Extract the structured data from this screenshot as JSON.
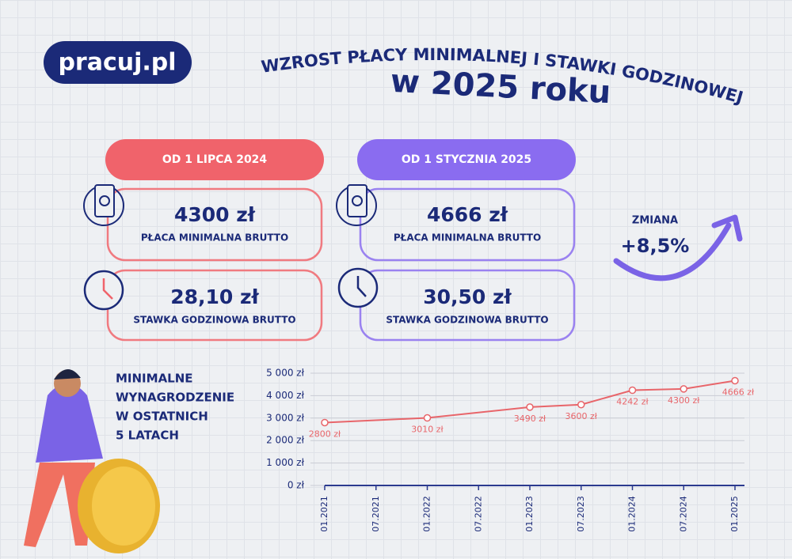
{
  "header": {
    "logo": "pracuj.pl",
    "title": "WZROST PŁACY MINIMALNEJ  I STAWKI GODZINOWEJ",
    "subtitle": "w 2025 roku"
  },
  "columns": [
    {
      "period": "OD 1 LIPCA 2024",
      "monthly": {
        "value": "4300 zł",
        "label": "PŁACA MINIMALNA BRUTTO"
      },
      "hourly": {
        "value": "28,10 zł",
        "label": "STAWKA GODZINOWA BRUTTO"
      }
    },
    {
      "period": "OD 1 STYCZNIA 2025",
      "monthly": {
        "value": "4666 zł",
        "label": "PŁACA MINIMALNA BRUTTO"
      },
      "hourly": {
        "value": "30,50 zł",
        "label": "STAWKA GODZINOWA BRUTTO"
      }
    }
  ],
  "change": {
    "label": "ZMIANA",
    "value": "+8,5%"
  },
  "chart_data": {
    "type": "line",
    "title_lines": [
      "MINIMALNE",
      "WYNAGRODZENIE",
      "W OSTATNICH",
      "5 LATACH"
    ],
    "x": [
      "01.2021",
      "01.2022",
      "01.2023",
      "07.2023",
      "01.2024",
      "07.2024",
      "01.2025"
    ],
    "xticks": [
      "01.2021",
      "07.2021",
      "01.2022",
      "07.2022",
      "01.2023",
      "07.2023",
      "01.2024",
      "07.2024",
      "01.2025"
    ],
    "series": [
      {
        "color": "#e8656a",
        "values": [
          2800,
          3010,
          3490,
          3600,
          4242,
          4300,
          4666
        ],
        "value_labels": [
          "2800 zł",
          "3010 zł",
          "3490 zł",
          "3600 zł",
          "4242 zł",
          "4300 zł",
          "4666 zł"
        ]
      }
    ],
    "ylim": [
      0,
      5000
    ],
    "yticks": [
      {
        "value": 0,
        "label": "0 zł"
      },
      {
        "value": 1000,
        "label": "1 000 zł"
      },
      {
        "value": 2000,
        "label": "2 000 zł"
      },
      {
        "value": 3000,
        "label": "3 000 zł"
      },
      {
        "value": 4000,
        "label": "4 000 zł"
      },
      {
        "value": 5000,
        "label": "5 000 zł"
      }
    ],
    "grid": true
  }
}
